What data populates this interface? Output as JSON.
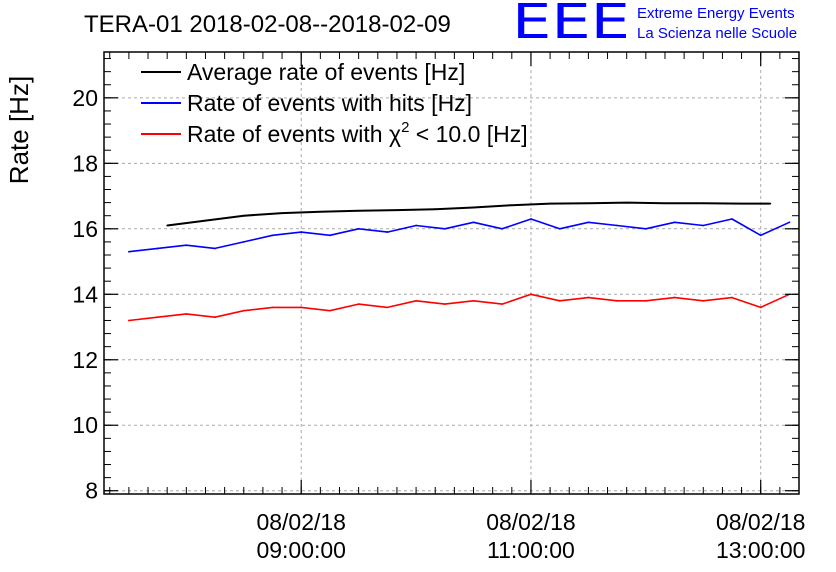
{
  "chart_data": {
    "type": "line",
    "title": "TERA-01 2018-02-08--2018-02-09",
    "ylabel": "Rate [Hz]",
    "xlabel": "",
    "ylim": [
      7.9,
      21.4
    ],
    "y_ticks": [
      8,
      10,
      12,
      14,
      16,
      18,
      20
    ],
    "x_range": [
      "2018-02-08 07:17",
      "2018-02-08 13:20"
    ],
    "x_ticks": [
      {
        "time": "2018-02-08 09:00",
        "date": "08/02/18",
        "clock": "09:00:00"
      },
      {
        "time": "2018-02-08 11:00",
        "date": "08/02/18",
        "clock": "11:00:00"
      },
      {
        "time": "2018-02-08 13:00",
        "date": "08/02/18",
        "clock": "13:00:00"
      }
    ],
    "grid": true,
    "legend_position": "top-left",
    "series": [
      {
        "name": "Average rate of events [Hz]",
        "legend_prefix": "Average rate of events [Hz]",
        "legend_sup": "",
        "legend_suffix": "",
        "color": "#000000",
        "x": [
          "2018-02-08 07:50",
          "2018-02-08 08:10",
          "2018-02-08 08:30",
          "2018-02-08 08:50",
          "2018-02-08 09:10",
          "2018-02-08 09:30",
          "2018-02-08 09:50",
          "2018-02-08 10:10",
          "2018-02-08 10:30",
          "2018-02-08 10:50",
          "2018-02-08 11:10",
          "2018-02-08 11:30",
          "2018-02-08 11:50",
          "2018-02-08 12:10",
          "2018-02-08 12:30",
          "2018-02-08 12:50",
          "2018-02-08 13:05"
        ],
        "values": [
          16.1,
          16.25,
          16.4,
          16.48,
          16.52,
          16.55,
          16.57,
          16.6,
          16.65,
          16.72,
          16.77,
          16.78,
          16.8,
          16.78,
          16.78,
          16.77,
          16.77
        ]
      },
      {
        "name": "Rate of events with hits [Hz]",
        "legend_prefix": "Rate of events with hits [Hz]",
        "legend_sup": "",
        "legend_suffix": "",
        "color": "#0000ff",
        "x": [
          "2018-02-08 07:30",
          "2018-02-08 07:45",
          "2018-02-08 08:00",
          "2018-02-08 08:15",
          "2018-02-08 08:30",
          "2018-02-08 08:45",
          "2018-02-08 09:00",
          "2018-02-08 09:15",
          "2018-02-08 09:30",
          "2018-02-08 09:45",
          "2018-02-08 10:00",
          "2018-02-08 10:15",
          "2018-02-08 10:30",
          "2018-02-08 10:45",
          "2018-02-08 11:00",
          "2018-02-08 11:15",
          "2018-02-08 11:30",
          "2018-02-08 11:45",
          "2018-02-08 12:00",
          "2018-02-08 12:15",
          "2018-02-08 12:30",
          "2018-02-08 12:45",
          "2018-02-08 13:00",
          "2018-02-08 13:15"
        ],
        "values": [
          15.3,
          15.4,
          15.5,
          15.4,
          15.6,
          15.8,
          15.9,
          15.8,
          16.0,
          15.9,
          16.1,
          16.0,
          16.2,
          16.0,
          16.3,
          16.0,
          16.2,
          16.1,
          16.0,
          16.2,
          16.1,
          16.3,
          15.8,
          16.2
        ]
      },
      {
        "name": "Rate of events with χ2 < 10.0 [Hz]",
        "legend_prefix": "Rate of events with χ",
        "legend_sup": "2",
        "legend_suffix": " < 10.0 [Hz]",
        "color": "#ff0000",
        "x": [
          "2018-02-08 07:30",
          "2018-02-08 07:45",
          "2018-02-08 08:00",
          "2018-02-08 08:15",
          "2018-02-08 08:30",
          "2018-02-08 08:45",
          "2018-02-08 09:00",
          "2018-02-08 09:15",
          "2018-02-08 09:30",
          "2018-02-08 09:45",
          "2018-02-08 10:00",
          "2018-02-08 10:15",
          "2018-02-08 10:30",
          "2018-02-08 10:45",
          "2018-02-08 11:00",
          "2018-02-08 11:15",
          "2018-02-08 11:30",
          "2018-02-08 11:45",
          "2018-02-08 12:00",
          "2018-02-08 12:15",
          "2018-02-08 12:30",
          "2018-02-08 12:45",
          "2018-02-08 13:00",
          "2018-02-08 13:15"
        ],
        "values": [
          13.2,
          13.3,
          13.4,
          13.3,
          13.5,
          13.6,
          13.6,
          13.5,
          13.7,
          13.6,
          13.8,
          13.7,
          13.8,
          13.7,
          14.0,
          13.8,
          13.9,
          13.8,
          13.8,
          13.9,
          13.8,
          13.9,
          13.6,
          14.0
        ]
      }
    ]
  },
  "logo": {
    "mark": "EEE",
    "line1": "Extreme Energy Events",
    "line2": "La Scienza nelle Scuole",
    "color": "#0000ff"
  }
}
